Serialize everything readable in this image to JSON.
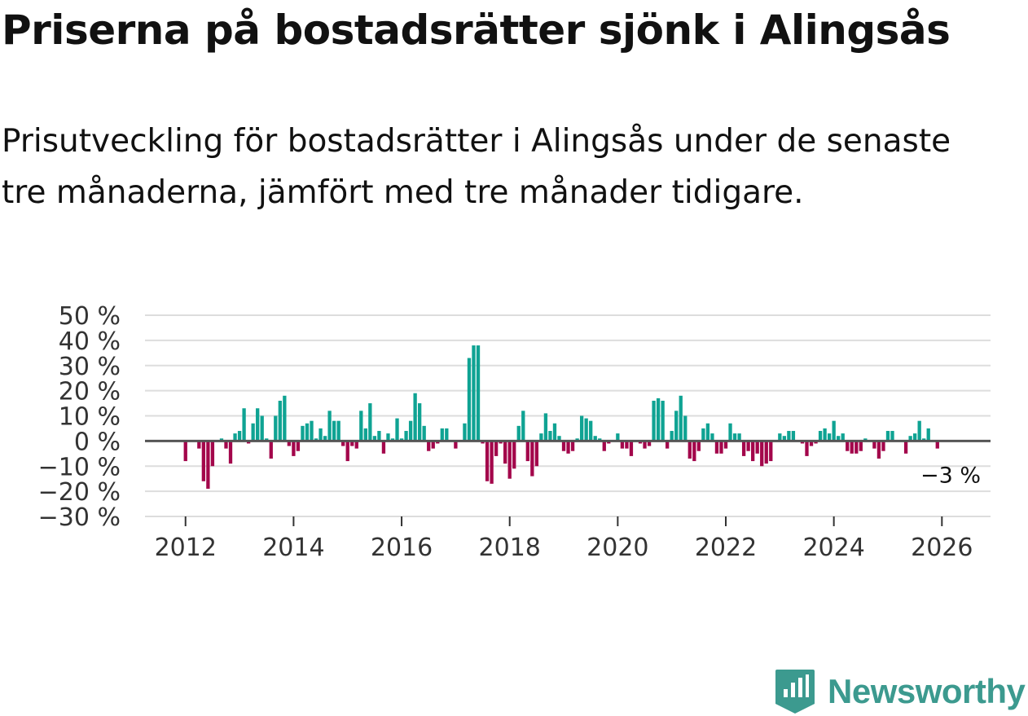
{
  "title": "Priserna på bostadsrätter sjönk i Alingsås",
  "subtitle": "Prisutveckling för bostadsrätter i Alingsås under de senaste tre månaderna, jämfört med tre månader tidigare.",
  "brand": "Newsworthy",
  "colors": {
    "positive": "#0fa393",
    "negative": "#a3064b",
    "grid": "#dddddd",
    "zero_line": "#555555",
    "brand": "#3c9a8f"
  },
  "chart_data": {
    "type": "bar",
    "title": "",
    "xlabel": "",
    "ylabel": "",
    "ylim": [
      -30,
      50
    ],
    "xlim": [
      2011.25,
      2026.9
    ],
    "yticks": [
      -30,
      -20,
      -10,
      0,
      10,
      20,
      30,
      40,
      50
    ],
    "ytick_labels": [
      "−30 %",
      "−20 %",
      "−10 %",
      "0 %",
      "10 %",
      "20 %",
      "30 %",
      "40 %",
      "50 %"
    ],
    "xticks": [
      2012,
      2014,
      2016,
      2018,
      2020,
      2022,
      2024,
      2026
    ],
    "xtick_labels": [
      "2012",
      "2014",
      "2016",
      "2018",
      "2020",
      "2022",
      "2024",
      "2026"
    ],
    "last_value_label": "−3 %",
    "series": [
      {
        "name": "Prisutveckling",
        "start": 2012.0,
        "step": 0.0833333,
        "values": [
          -8,
          0,
          0,
          -3,
          -16,
          -19,
          -10,
          0,
          1,
          -3,
          -9,
          3,
          4,
          13,
          -1,
          7,
          13,
          10,
          1,
          -7,
          10,
          16,
          18,
          -2,
          -6,
          -4,
          6,
          7,
          8,
          1,
          5,
          2,
          12,
          8,
          8,
          -2,
          -8,
          -2,
          -3,
          12,
          5,
          15,
          2,
          4,
          -5,
          3,
          1,
          9,
          1,
          4,
          8,
          19,
          15,
          6,
          -4,
          -3,
          -1,
          5,
          5,
          0,
          -3,
          0,
          7,
          33,
          38,
          38,
          -1,
          -16,
          -17,
          -6,
          -1,
          -9,
          -15,
          -11,
          6,
          12,
          -8,
          -14,
          -10,
          3,
          11,
          4,
          7,
          2,
          -4,
          -5,
          -4,
          1,
          10,
          9,
          8,
          2,
          1,
          -4,
          -1,
          0,
          3,
          -3,
          -3,
          -6,
          0,
          -1,
          -3,
          -2,
          16,
          17,
          16,
          -3,
          4,
          12,
          18,
          10,
          -7,
          -8,
          -4,
          5,
          7,
          3,
          -5,
          -5,
          -3,
          7,
          3,
          3,
          -6,
          -4,
          -8,
          -5,
          -10,
          -9,
          -8,
          0,
          3,
          2,
          4,
          4,
          0,
          -1,
          -6,
          -2,
          -1,
          4,
          5,
          3,
          8,
          2,
          3,
          -4,
          -5,
          -5,
          -4,
          1,
          0,
          -3,
          -7,
          -4,
          4,
          4,
          0,
          0,
          -5,
          2,
          3,
          8,
          1,
          5,
          0,
          -3
        ]
      }
    ]
  }
}
